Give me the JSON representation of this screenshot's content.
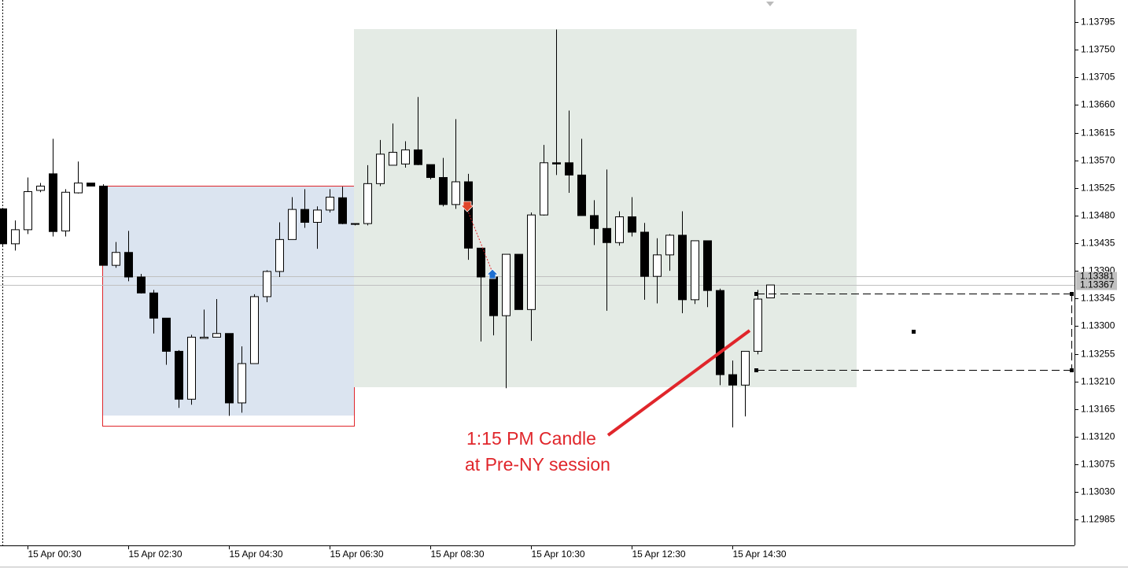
{
  "chart_data": {
    "type": "candlestick",
    "x": [
      "15 Apr 00:00",
      "15 Apr 00:15",
      "15 Apr 00:30",
      "15 Apr 00:45",
      "15 Apr 01:00",
      "15 Apr 01:15",
      "15 Apr 01:30",
      "15 Apr 01:45",
      "15 Apr 02:00",
      "15 Apr 02:15",
      "15 Apr 02:30",
      "15 Apr 02:45",
      "15 Apr 03:00",
      "15 Apr 03:15",
      "15 Apr 03:30",
      "15 Apr 03:45",
      "15 Apr 04:00",
      "15 Apr 04:15",
      "15 Apr 04:30",
      "15 Apr 04:45",
      "15 Apr 05:00",
      "15 Apr 05:15",
      "15 Apr 05:30",
      "15 Apr 05:45",
      "15 Apr 06:00",
      "15 Apr 06:15",
      "15 Apr 06:30",
      "15 Apr 06:45",
      "15 Apr 07:00",
      "15 Apr 07:15",
      "15 Apr 07:30",
      "15 Apr 07:45",
      "15 Apr 08:00",
      "15 Apr 08:15",
      "15 Apr 08:30",
      "15 Apr 08:45",
      "15 Apr 09:00",
      "15 Apr 09:15",
      "15 Apr 09:30",
      "15 Apr 09:45",
      "15 Apr 10:00",
      "15 Apr 10:15",
      "15 Apr 10:30",
      "15 Apr 10:45",
      "15 Apr 11:00",
      "15 Apr 11:15",
      "15 Apr 11:30",
      "15 Apr 11:45",
      "15 Apr 12:00",
      "15 Apr 12:15",
      "15 Apr 12:30",
      "15 Apr 12:45",
      "15 Apr 13:00",
      "15 Apr 13:15",
      "15 Apr 13:30",
      "15 Apr 13:45",
      "15 Apr 14:00",
      "15 Apr 14:15",
      "15 Apr 14:30",
      "15 Apr 14:45",
      "15 Apr 15:00",
      "15 Apr 15:15"
    ],
    "open": [
      1.13491,
      1.13434,
      1.13457,
      1.13521,
      1.13548,
      1.13455,
      1.13517,
      1.13533,
      1.13528,
      1.13399,
      1.1342,
      1.1338,
      1.13354,
      1.13313,
      1.13259,
      1.13181,
      1.1328,
      1.13282,
      1.13288,
      1.13175,
      1.13239,
      1.13348,
      1.13389,
      1.13441,
      1.1349,
      1.13469,
      1.13489,
      1.13509,
      1.13467,
      1.13467,
      1.13532,
      1.13562,
      1.13564,
      1.13587,
      1.13563,
      1.13542,
      1.13498,
      1.13535,
      1.13427,
      1.1338,
      1.13317,
      1.13417,
      1.13327,
      1.13481,
      1.13566,
      1.13566,
      1.13546,
      1.1348,
      1.13459,
      1.13436,
      1.13478,
      1.13453,
      1.13381,
      1.13416,
      1.13448,
      1.13343,
      1.13439,
      1.13358,
      1.13221,
      1.13204,
      1.13259,
      1.13346
    ],
    "high": [
      1.13491,
      1.13472,
      1.13542,
      1.13533,
      1.13605,
      1.13523,
      1.13568,
      1.13533,
      1.13531,
      1.13437,
      1.13455,
      1.13385,
      1.13359,
      1.13313,
      1.13261,
      1.13286,
      1.13327,
      1.13344,
      1.13288,
      1.13267,
      1.13352,
      1.13391,
      1.13469,
      1.1351,
      1.13523,
      1.13495,
      1.13523,
      1.13527,
      1.13467,
      1.13562,
      1.13603,
      1.1363,
      1.13601,
      1.13673,
      1.13563,
      1.13574,
      1.13637,
      1.13548,
      1.13427,
      1.13382,
      1.13417,
      1.13417,
      1.13485,
      1.13595,
      1.13783,
      1.13651,
      1.13605,
      1.13505,
      1.13555,
      1.13487,
      1.1351,
      1.13468,
      1.13443,
      1.1345,
      1.13487,
      1.13439,
      1.13439,
      1.13361,
      1.13244,
      1.13259,
      1.13359,
      1.13367
    ],
    "low": [
      1.13431,
      1.13423,
      1.1345,
      1.13518,
      1.13446,
      1.13446,
      1.13516,
      1.13528,
      1.13399,
      1.13395,
      1.13373,
      1.13353,
      1.13288,
      1.13237,
      1.13167,
      1.13172,
      1.1328,
      1.13282,
      1.13154,
      1.13159,
      1.13239,
      1.13339,
      1.1338,
      1.13441,
      1.1346,
      1.13426,
      1.13485,
      1.13466,
      1.13464,
      1.13464,
      1.13528,
      1.13562,
      1.13558,
      1.13562,
      1.13539,
      1.13495,
      1.13491,
      1.13408,
      1.13275,
      1.13285,
      1.13199,
      1.13327,
      1.13276,
      1.1348,
      1.13546,
      1.13517,
      1.1348,
      1.13432,
      1.13325,
      1.13431,
      1.13446,
      1.13343,
      1.13337,
      1.1339,
      1.13321,
      1.13336,
      1.13331,
      1.13204,
      1.13135,
      1.13153,
      1.13254,
      1.13346
    ],
    "close": [
      1.13434,
      1.13457,
      1.13519,
      1.13528,
      1.13454,
      1.13518,
      1.13533,
      1.13528,
      1.13399,
      1.1342,
      1.1338,
      1.13354,
      1.13313,
      1.13259,
      1.13181,
      1.13282,
      1.13282,
      1.13288,
      1.13175,
      1.13239,
      1.13348,
      1.13389,
      1.13441,
      1.1349,
      1.13469,
      1.13489,
      1.1351,
      1.13467,
      1.13466,
      1.13532,
      1.1358,
      1.13583,
      1.13587,
      1.13563,
      1.13542,
      1.13498,
      1.13535,
      1.13427,
      1.1338,
      1.13317,
      1.13417,
      1.13327,
      1.13481,
      1.13566,
      1.13564,
      1.13546,
      1.1348,
      1.13459,
      1.13436,
      1.13478,
      1.13453,
      1.13381,
      1.13416,
      1.13448,
      1.13343,
      1.13439,
      1.13358,
      1.13221,
      1.13204,
      1.13259,
      1.13344,
      1.13367
    ],
    "up_color": "#ffffff",
    "down_color": "#000000",
    "ylim": [
      1.12943,
      1.13831
    ],
    "yticks": [
      1.13795,
      {
        "value": 1.1375,
        "label": "1.13750"
      },
      1.13705,
      {
        "value": 1.1366,
        "label": "1.13660"
      },
      1.13615,
      {
        "value": 1.1357,
        "label": "1.13570"
      },
      1.13525,
      {
        "value": 1.1348,
        "label": "1.13480"
      },
      1.13435,
      {
        "value": 1.1339,
        "label": "1.13390"
      },
      1.13345,
      {
        "value": 1.133,
        "label": "1.13300"
      },
      1.13255,
      {
        "value": 1.1321,
        "label": "1.13210"
      },
      1.13165,
      {
        "value": 1.1312,
        "label": "1.13120"
      },
      1.13075,
      {
        "value": 1.1303,
        "label": "1.13030"
      },
      1.12985
    ],
    "xticks": [
      "15 Apr 00:30",
      "15 Apr 02:30",
      "15 Apr 04:30",
      "15 Apr 06:30",
      "15 Apr 08:30",
      "15 Apr 10:30",
      "15 Apr 12:30",
      "15 Apr 14:30"
    ],
    "price_lines": [
      1.13381,
      1.13367
    ],
    "annotations": [
      "1:15 PM Candle",
      "at Pre-NY session"
    ]
  }
}
